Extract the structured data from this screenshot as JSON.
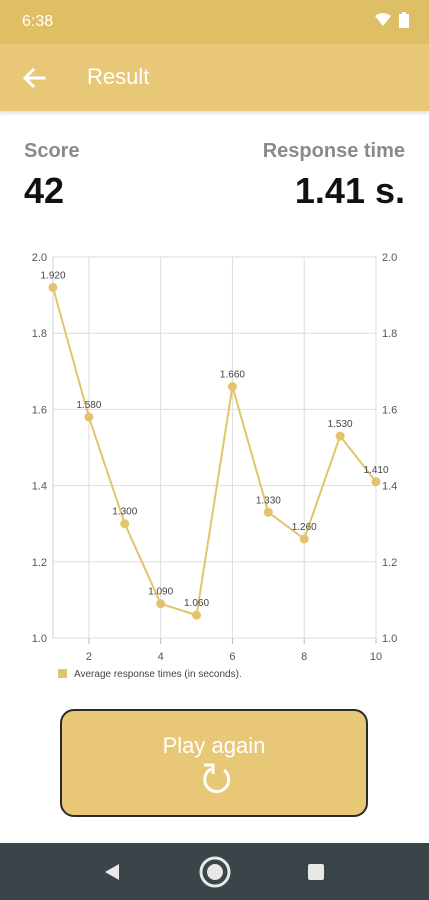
{
  "status": {
    "time": "6:38"
  },
  "app_bar": {
    "title": "Result"
  },
  "stats": {
    "score_label": "Score",
    "score_value": "42",
    "response_label": "Response time",
    "response_value": "1.41 s."
  },
  "chart_data": {
    "type": "line",
    "x": [
      1,
      2,
      3,
      4,
      5,
      6,
      7,
      8,
      9,
      10
    ],
    "values": [
      1.92,
      1.58,
      1.3,
      1.09,
      1.06,
      1.66,
      1.33,
      1.26,
      1.53,
      1.41
    ],
    "point_labels": [
      "1.920",
      "1.580",
      "1.300",
      "1.090",
      "1.060",
      "1.660",
      "1.330",
      "1.260",
      "1.530",
      "1.410"
    ],
    "x_ticks": [
      "2",
      "4",
      "6",
      "8",
      "10"
    ],
    "y_ticks": [
      "1.0",
      "1.2",
      "1.4",
      "1.6",
      "1.8",
      "2.0"
    ],
    "ylim": [
      1.0,
      2.0
    ],
    "xlim": [
      1,
      10
    ],
    "legend": "Average response times (in seconds).",
    "legend_placement": "bottom-left",
    "grid": true,
    "color": "#e3c36c"
  },
  "play_button": {
    "label": "Play again",
    "icon": "replay-icon"
  },
  "nav": {
    "back": "back-triangle-icon",
    "home": "home-circle-icon",
    "recents": "recents-square-icon"
  }
}
